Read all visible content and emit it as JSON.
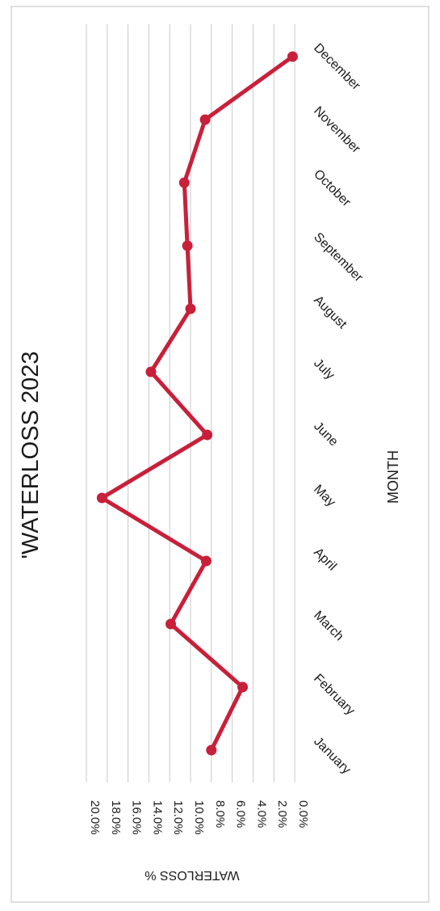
{
  "chart_data": {
    "type": "line",
    "title": "'WATERLOSS 2023",
    "xlabel": "MONTH",
    "ylabel": "WATERLOSS %",
    "categories": [
      "January",
      "February",
      "March",
      "April",
      "May",
      "June",
      "July",
      "August",
      "September",
      "October",
      "November",
      "December"
    ],
    "series": [
      {
        "values": [
          8.0,
          5.0,
          11.9,
          8.5,
          18.5,
          8.4,
          13.8,
          10.0,
          10.3,
          10.6,
          8.6,
          0.2
        ]
      }
    ],
    "ylim": [
      0,
      20
    ],
    "yticks": [
      "0.0%",
      "2.0%",
      "4.0%",
      "6.0%",
      "8.0%",
      "10.0%",
      "12.0%",
      "14.0%",
      "16.0%",
      "18.0%",
      "20.0%"
    ],
    "grid": true,
    "colors": {
      "line": "#c8203a",
      "grid": "#c8c8c8",
      "frame": "#bfbfbf"
    },
    "orientation": "rotated-90-clockwise"
  }
}
